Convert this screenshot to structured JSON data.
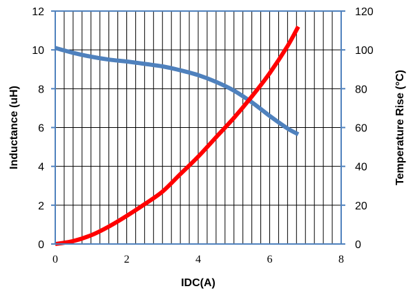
{
  "chart_data": {
    "type": "line",
    "xlabel": "IDC(A)",
    "ylabel": "Inductance (uH)",
    "y2label": "Temperature Rise (°C)",
    "xlim": [
      0,
      8
    ],
    "ylim": [
      0,
      12
    ],
    "y2lim": [
      0,
      120
    ],
    "x_ticks": [
      "0",
      "2",
      "4",
      "6",
      "8"
    ],
    "y_ticks": [
      "0",
      "2",
      "4",
      "6",
      "8",
      "10",
      "12"
    ],
    "y2_ticks": [
      "0",
      "20",
      "40",
      "60",
      "80",
      "100",
      "120"
    ],
    "grid": true,
    "series": [
      {
        "axis": "left",
        "color": "#4f81bd",
        "x": [
          0,
          0.5,
          1,
          1.5,
          2,
          2.5,
          3,
          3.5,
          4,
          4.5,
          5,
          5.5,
          6,
          6.5,
          6.8
        ],
        "values": [
          10.1,
          9.85,
          9.65,
          9.5,
          9.4,
          9.28,
          9.15,
          8.95,
          8.7,
          8.35,
          7.9,
          7.3,
          6.6,
          5.95,
          5.65
        ]
      },
      {
        "axis": "right",
        "color": "#ff0000",
        "x": [
          0,
          0.5,
          1,
          1.5,
          2,
          2.5,
          3,
          3.5,
          4,
          4.5,
          5,
          5.5,
          6,
          6.5,
          6.8
        ],
        "values": [
          0,
          1.5,
          4.5,
          9,
          14.5,
          20.5,
          27,
          36,
          45,
          55,
          65,
          76,
          88,
          102,
          112
        ]
      }
    ]
  }
}
